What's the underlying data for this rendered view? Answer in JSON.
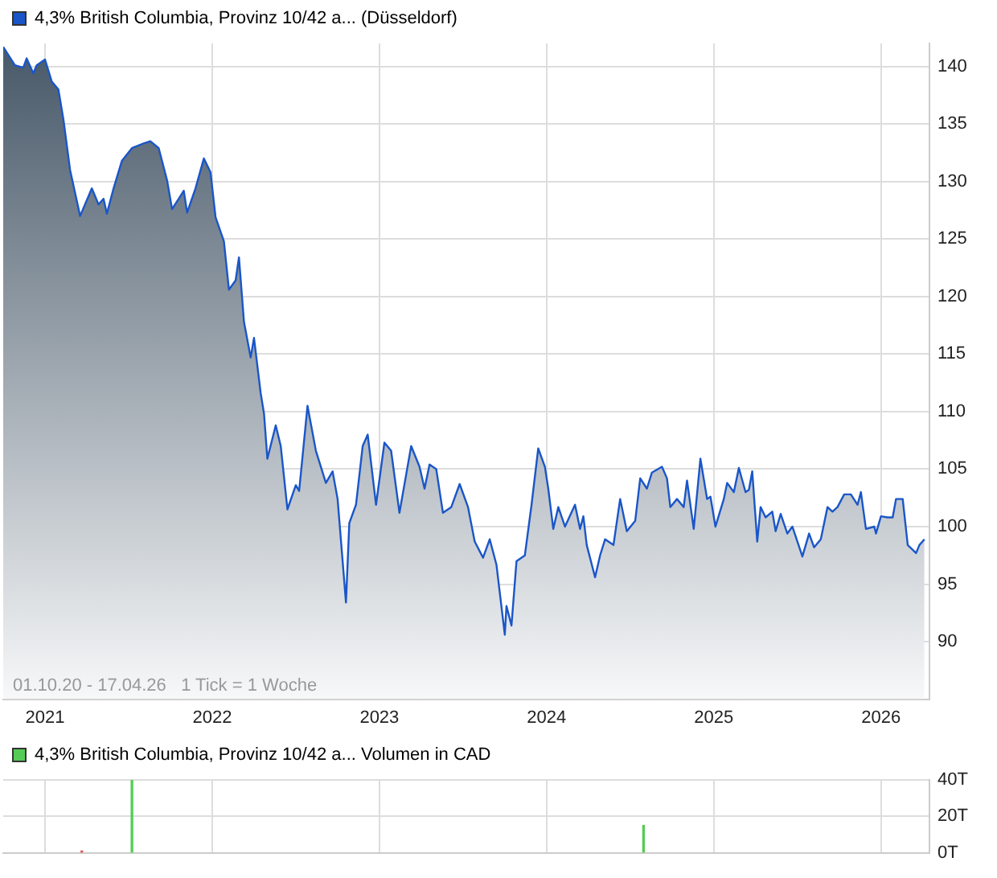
{
  "chart_data": [
    {
      "type": "area",
      "legend": "top left",
      "grid": true,
      "marker": "none",
      "xlim": [
        2020.75,
        2026.29
      ],
      "xticks": [
        2021,
        2022,
        2023,
        2024,
        2025,
        2026
      ],
      "ylim": [
        85,
        142
      ],
      "yticks": [
        90,
        95,
        100,
        105,
        110,
        115,
        120,
        125,
        130,
        135,
        140
      ],
      "annotations": [
        "01.10.20 - 17.04.26   1 Tick = 1 Woche"
      ],
      "series": [
        {
          "name": "4,3% British Columbia, Provinz 10/42 a... (Düsseldorf)",
          "color": "#1a56c8",
          "x": [
            2020.75,
            2020.82,
            2020.87,
            2020.89,
            2020.93,
            2020.95,
            2021.0,
            2021.04,
            2021.08,
            2021.11,
            2021.15,
            2021.21,
            2021.28,
            2021.32,
            2021.35,
            2021.37,
            2021.41,
            2021.46,
            2021.52,
            2021.59,
            2021.63,
            2021.68,
            2021.73,
            2021.76,
            2021.8,
            2021.83,
            2021.85,
            2021.9,
            2021.95,
            2021.99,
            2022.02,
            2022.07,
            2022.1,
            2022.14,
            2022.16,
            2022.19,
            2022.23,
            2022.25,
            2022.29,
            2022.31,
            2022.33,
            2022.38,
            2022.41,
            2022.45,
            2022.5,
            2022.52,
            2022.57,
            2022.62,
            2022.68,
            2022.72,
            2022.75,
            2022.8,
            2022.82,
            2022.86,
            2022.9,
            2022.93,
            2022.98,
            2023.03,
            2023.07,
            2023.12,
            2023.19,
            2023.24,
            2023.27,
            2023.3,
            2023.34,
            2023.38,
            2023.43,
            2023.48,
            2023.53,
            2023.57,
            2023.62,
            2023.66,
            2023.7,
            2023.75,
            2023.76,
            2023.79,
            2023.82,
            2023.87,
            2023.91,
            2023.95,
            2023.99,
            2024.01,
            2024.04,
            2024.07,
            2024.11,
            2024.17,
            2024.2,
            2024.22,
            2024.24,
            2024.29,
            2024.32,
            2024.35,
            2024.4,
            2024.44,
            2024.48,
            2024.53,
            2024.56,
            2024.6,
            2024.63,
            2024.69,
            2024.72,
            2024.74,
            2024.78,
            2024.82,
            2024.84,
            2024.88,
            2024.92,
            2024.96,
            2024.98,
            2025.01,
            2025.06,
            2025.08,
            2025.12,
            2025.15,
            2025.19,
            2025.21,
            2025.23,
            2025.26,
            2025.28,
            2025.31,
            2025.35,
            2025.37,
            2025.4,
            2025.44,
            2025.47,
            2025.53,
            2025.57,
            2025.6,
            2025.64,
            2025.68,
            2025.71,
            2025.74,
            2025.78,
            2025.82,
            2025.86,
            2025.88,
            2025.91,
            2025.96,
            2025.97,
            2026.0,
            2026.04,
            2026.07,
            2026.09,
            2026.13,
            2026.16,
            2026.21,
            2026.23,
            2026.26
          ],
          "values": [
            141.7,
            140.1,
            139.9,
            140.7,
            139.4,
            140.1,
            140.6,
            138.7,
            138,
            135.4,
            131,
            127,
            129.4,
            128,
            128.5,
            127.2,
            129.4,
            131.8,
            132.9,
            133.3,
            133.5,
            132.9,
            130.1,
            127.6,
            128.5,
            129.2,
            127.3,
            129.4,
            132,
            130.8,
            126.9,
            124.8,
            120.6,
            121.4,
            123.4,
            117.8,
            114.7,
            116.4,
            111.6,
            109.8,
            105.9,
            108.8,
            107,
            101.5,
            103.6,
            103.1,
            110.5,
            106.6,
            103.8,
            104.8,
            102.4,
            93.4,
            100.3,
            101.9,
            107,
            108,
            101.9,
            107.3,
            106.6,
            101.2,
            107,
            105.2,
            103.3,
            105.4,
            105,
            101.2,
            101.7,
            103.7,
            101.7,
            98.7,
            97.3,
            98.9,
            96.7,
            90.6,
            93.1,
            91.4,
            97,
            97.5,
            101.9,
            106.8,
            105.2,
            103.3,
            99.8,
            101.7,
            100,
            101.9,
            99.8,
            100.9,
            98.4,
            95.6,
            97.5,
            98.9,
            98.4,
            102.4,
            99.6,
            100.5,
            104.2,
            103.3,
            104.7,
            105.2,
            104.2,
            101.7,
            102.4,
            101.7,
            104,
            99.8,
            105.9,
            102.4,
            102.6,
            100,
            102.4,
            103.8,
            103,
            105.1,
            103,
            103.2,
            104.8,
            98.7,
            101.7,
            100.8,
            101.3,
            99.6,
            101.1,
            99.4,
            100,
            97.4,
            99.4,
            98.2,
            98.9,
            101.7,
            101.3,
            101.7,
            102.8,
            102.8,
            101.9,
            103,
            99.8,
            100,
            99.4,
            100.9,
            100.8,
            100.8,
            102.4,
            102.4,
            98.4,
            97.7,
            98.4,
            98.9
          ]
        }
      ]
    },
    {
      "type": "bar",
      "legend": "top left",
      "grid": true,
      "tick_labels": "y",
      "xlim": [
        2020.75,
        2026.29
      ],
      "xticks": [
        {
          "value": 2021,
          "label": null
        },
        {
          "value": 2022,
          "label": null
        },
        {
          "value": 2023,
          "label": null
        },
        {
          "value": 2024,
          "label": null
        },
        {
          "value": 2025,
          "label": null
        },
        {
          "value": 2026,
          "label": null
        }
      ],
      "ylim": [
        0,
        40
      ],
      "yticks": [
        {
          "value": 0,
          "label": "0T"
        },
        {
          "value": 20,
          "label": "20T"
        },
        {
          "value": 40,
          "label": "40T"
        }
      ],
      "series": [
        {
          "name": "4,3% British Columbia, Provinz 10/42 a... Volumen in CAD",
          "color": "#55cc55",
          "x": [
            2021.22,
            2021.52,
            2024.58
          ],
          "values": [
            1,
            40,
            15
          ],
          "colors": [
            "#e05555",
            "#55cc55",
            "#55cc55"
          ]
        }
      ]
    }
  ]
}
